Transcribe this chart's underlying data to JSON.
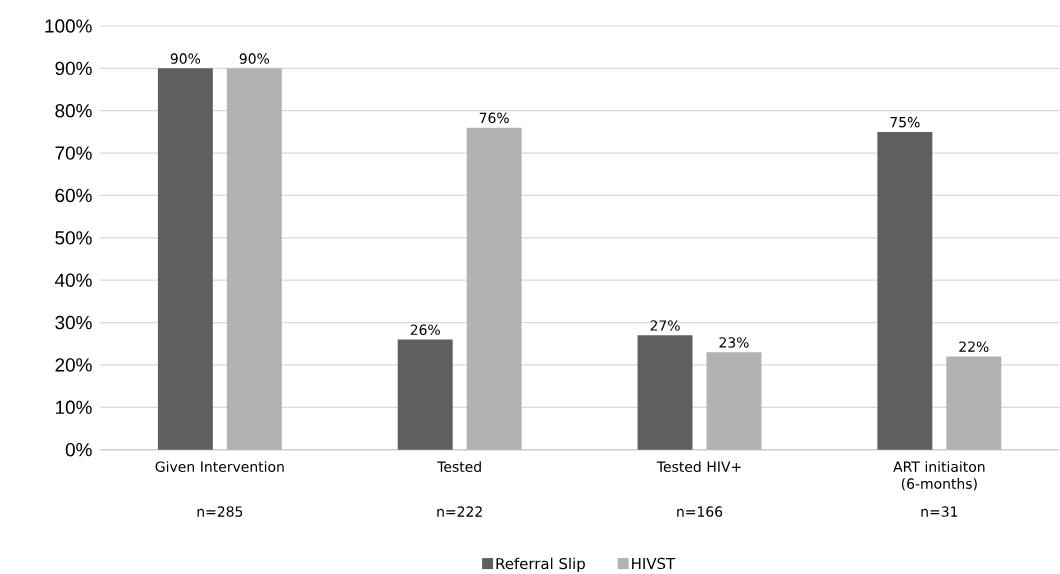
{
  "chart_data": {
    "type": "bar",
    "categories": [
      "Given Intervention",
      "Tested",
      "Tested HIV+",
      "ART initiaiton (6-months)"
    ],
    "series": [
      {
        "name": "Referral Slip",
        "color": "#5f5f5f",
        "values": [
          90,
          26,
          27,
          75
        ],
        "value_labels": [
          "90%",
          "26%",
          "27%",
          "75%"
        ]
      },
      {
        "name": "HIVST",
        "color": "#b2b2b2",
        "values": [
          90,
          76,
          23,
          22
        ],
        "value_labels": [
          "90%",
          "76%",
          "23%",
          "22%"
        ]
      }
    ],
    "ylim": [
      0,
      100
    ],
    "yticks": [
      {
        "value": 0,
        "label": "0%"
      },
      {
        "value": 10,
        "label": "10%"
      },
      {
        "value": 20,
        "label": "20%"
      },
      {
        "value": 30,
        "label": "30%"
      },
      {
        "value": 40,
        "label": "40%"
      },
      {
        "value": 50,
        "label": "50%"
      },
      {
        "value": 60,
        "label": "60%"
      },
      {
        "value": 70,
        "label": "70%"
      },
      {
        "value": 80,
        "label": "80%"
      },
      {
        "value": 90,
        "label": "90%"
      },
      {
        "value": 100,
        "label": "100%"
      }
    ],
    "grid": "y",
    "legend": "bottom",
    "annotations": [
      "n=285",
      "n=222",
      "n=166",
      "n=31"
    ]
  }
}
